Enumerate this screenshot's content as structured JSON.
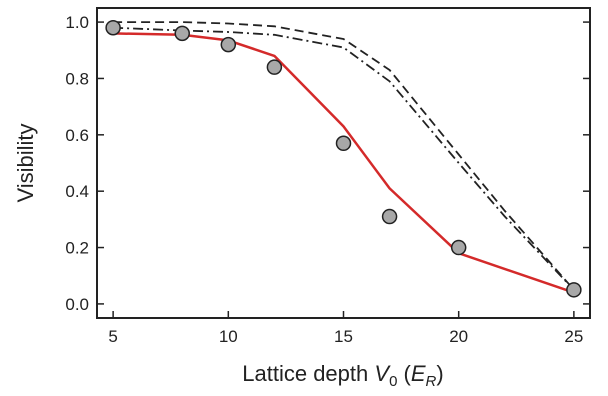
{
  "chart_data": {
    "type": "line",
    "xlabel": "Lattice depth V0 (ER)",
    "ylabel": "Visibility",
    "xlim": [
      4.3,
      25.7
    ],
    "ylim": [
      -0.05,
      1.05
    ],
    "x_ticks": [
      5,
      10,
      15,
      20,
      25
    ],
    "y_ticks": [
      0.0,
      0.2,
      0.4,
      0.6,
      0.8,
      1.0
    ],
    "y_tick_labels": [
      "0.0",
      "0.2",
      "0.4",
      "0.6",
      "0.8",
      "1.0"
    ],
    "grid": false,
    "legend": "none",
    "series": [
      {
        "kind": "scatter",
        "color": "#a8a8a8",
        "x": [
          5,
          8,
          10,
          12,
          15,
          17,
          20,
          25
        ],
        "y": [
          0.98,
          0.96,
          0.92,
          0.84,
          0.57,
          0.31,
          0.2,
          0.05
        ]
      },
      {
        "kind": "line",
        "style": "solid",
        "color": "#d42a2a",
        "x": [
          5,
          8,
          10,
          12,
          15,
          17,
          20,
          25
        ],
        "y": [
          0.96,
          0.955,
          0.935,
          0.88,
          0.63,
          0.41,
          0.18,
          0.04
        ]
      },
      {
        "kind": "line",
        "style": "dashed",
        "color": "#222222",
        "x": [
          5,
          8,
          10,
          12,
          15,
          17,
          20,
          22,
          25
        ],
        "y": [
          1.0,
          1.0,
          0.995,
          0.985,
          0.94,
          0.83,
          0.53,
          0.33,
          0.05
        ]
      },
      {
        "kind": "line",
        "style": "dash-dot",
        "color": "#222222",
        "x": [
          5,
          8,
          10,
          12,
          15,
          17,
          20,
          22,
          25
        ],
        "y": [
          0.98,
          0.97,
          0.965,
          0.955,
          0.91,
          0.79,
          0.5,
          0.31,
          0.05
        ]
      }
    ]
  }
}
